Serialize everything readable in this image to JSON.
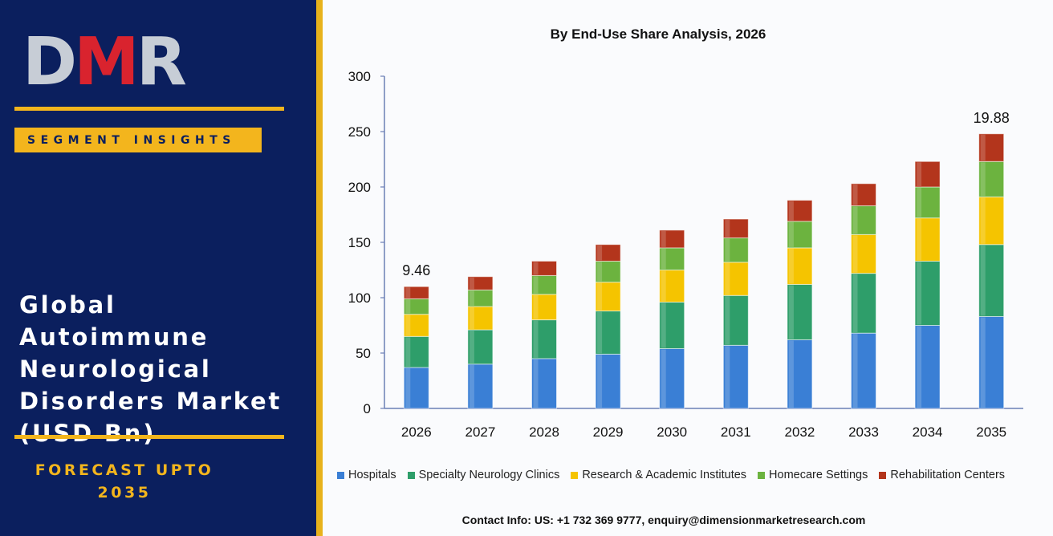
{
  "brand": {
    "logo": [
      "D",
      "M",
      "R"
    ]
  },
  "left_panel": {
    "segment_label": "SEGMENT INSIGHTS",
    "market_title_lines": [
      "Global Autoimmune",
      "Neurological",
      "Disorders Market",
      "(USD Bn)"
    ],
    "forecast_lines": [
      "FORECAST UPTO",
      "2035"
    ]
  },
  "contact": "Contact Info: US: +1 732 369 9777, enquiry@dimensionmarketresearch.com",
  "colors": {
    "panel": "#0b1f5e",
    "accent": "#f3b51d",
    "logo_red": "#d9232e"
  },
  "chart_data": {
    "type": "bar",
    "stacked": true,
    "title": "By End-Use Share Analysis, 2026",
    "xlabel": "",
    "ylabel": "",
    "categories": [
      "2026",
      "2027",
      "2028",
      "2029",
      "2030",
      "2031",
      "2032",
      "2033",
      "2034",
      "2035"
    ],
    "ylim": [
      0,
      300
    ],
    "yticks": [
      0,
      50,
      100,
      150,
      200,
      250,
      300
    ],
    "legend_position": "bottom",
    "series": [
      {
        "name": "Hospitals",
        "color": "#3a7fd5",
        "values": [
          37,
          40,
          45,
          49,
          54,
          57,
          62,
          68,
          75,
          83
        ]
      },
      {
        "name": "Specialty Neurology Clinics",
        "color": "#2e9e6a",
        "values": [
          28,
          31,
          35,
          39,
          42,
          45,
          50,
          54,
          58,
          65
        ]
      },
      {
        "name": "Research & Academic Institutes",
        "color": "#f5c400",
        "values": [
          20,
          21,
          23,
          26,
          29,
          30,
          33,
          35,
          39,
          43
        ]
      },
      {
        "name": "Homecare Settings",
        "color": "#6cb33f",
        "values": [
          14,
          15,
          17,
          19,
          20,
          22,
          24,
          26,
          28,
          32
        ]
      },
      {
        "name": "Rehabilitation Centers",
        "color": "#b3351c",
        "values": [
          11,
          12,
          13,
          15,
          16,
          17,
          19,
          20,
          23,
          25
        ]
      }
    ],
    "annotations": [
      {
        "category": "2026",
        "text": "9.46"
      },
      {
        "category": "2035",
        "text": "19.88"
      }
    ]
  }
}
